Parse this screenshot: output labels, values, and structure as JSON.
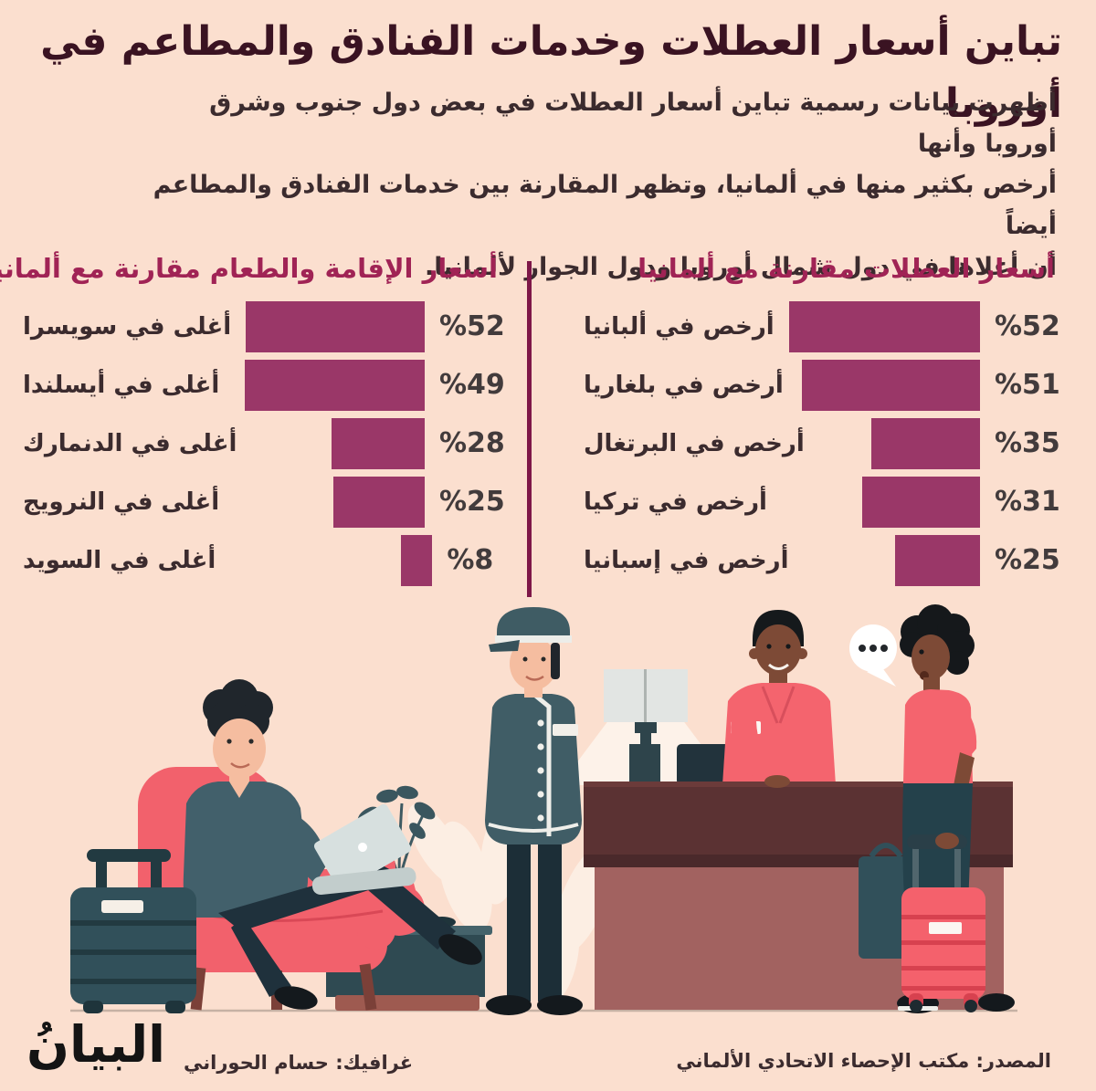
{
  "page": {
    "title": "تباين أسعار العطلات وخدمات الفنادق والمطاعم في أوروبا",
    "intro_lines": [
      "أظهرت بيانات رسمية تباين أسعار العطلات في بعض دول جنوب وشرق أوروبا وأنها",
      "أرخص بكثير منها في ألمانيا، وتظهر المقارنة بين خدمات الفنادق والمطاعم أيضاً",
      "أن أغلاها في دول شمال أوروبا ودول الجوار لألمانيا."
    ],
    "logo": "البيانُ",
    "credit": "غرافيك: حسام الحوراني",
    "source": "المصدر: مكتب الإحصاء الاتحادي الألماني"
  },
  "colors": {
    "background": "#FBDFCF",
    "bar": "#9A3768",
    "chart_title": "#A02355",
    "divider": "#7E1748",
    "headline": "#3A1322",
    "body_text": "#3B2B2E",
    "accent_salmon": "#F4646E",
    "teal_dark": "#31505A",
    "desk_brown": "#5B3233"
  },
  "chart_data": [
    {
      "type": "bar",
      "orientation": "horizontal-rtl",
      "title": "أسعار العطلات مقارنة مع ألمانيا",
      "categories": [
        "أرخص في ألبانيا",
        "أرخص في بلغاريا",
        "أرخص في البرتغال",
        "أرخص في تركيا",
        "أرخص في إسبانيا"
      ],
      "values": [
        52,
        51,
        35,
        31,
        25
      ],
      "value_labels": [
        "%52",
        "%51",
        "%35",
        "%31",
        "%25"
      ],
      "unit": "%",
      "xlim": [
        0,
        52
      ],
      "bar_color": "#9A3768",
      "grid": false,
      "legend": "none"
    },
    {
      "type": "bar",
      "orientation": "horizontal-rtl",
      "title": "أسعار الإقامة والطعام مقارنة مع ألمانيا",
      "categories": [
        "أغلى في سويسرا",
        "أغلى في أيسلندا",
        "أغلى في الدنمارك",
        "أغلى في النرويج",
        "أغلى في السويد"
      ],
      "values": [
        52,
        49,
        28,
        25,
        8
      ],
      "value_labels": [
        "%52",
        "%49",
        "%28",
        "%25",
        "%8"
      ],
      "unit": "%",
      "xlim": [
        0,
        52
      ],
      "bar_color": "#9A3768",
      "grid": false,
      "legend": "none"
    }
  ],
  "illustration": {
    "speech_bubble_dots": "•••",
    "scene": "hotel lobby: guest with laptop in armchair, bellhop, receptionist at desk, guest with suitcase"
  }
}
